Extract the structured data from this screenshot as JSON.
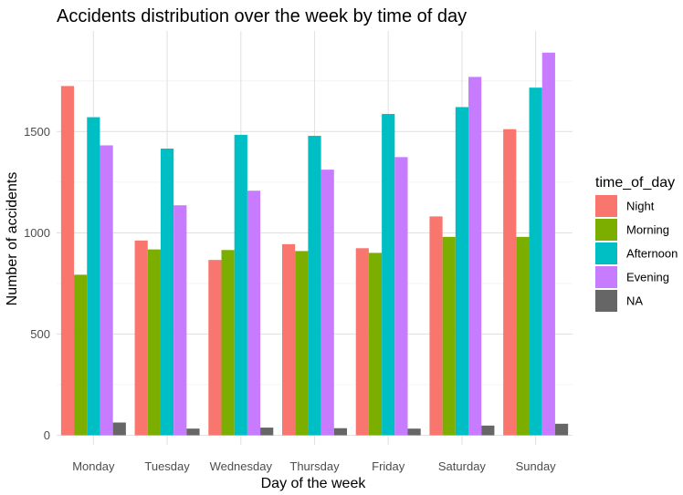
{
  "chart_data": {
    "type": "bar",
    "title": "Accidents distribution over the week by time of day",
    "xlabel": "Day of the week",
    "ylabel": "Number of accidents",
    "categories": [
      "Monday",
      "Tuesday",
      "Wednesday",
      "Thursday",
      "Friday",
      "Saturday",
      "Sunday"
    ],
    "ylim": [
      0,
      1950
    ],
    "yticks": [
      0,
      500,
      1000,
      1500
    ],
    "grid": true,
    "legend": {
      "title": "time_of_day",
      "position": "right"
    },
    "series": [
      {
        "name": "Night",
        "color": "#f8766d",
        "values": [
          1725,
          962,
          866,
          944,
          924,
          1081,
          1512
        ]
      },
      {
        "name": "Morning",
        "color": "#7cae00",
        "values": [
          793,
          918,
          915,
          910,
          901,
          980,
          980
        ]
      },
      {
        "name": "Afternoon",
        "color": "#00bfc4",
        "values": [
          1571,
          1416,
          1484,
          1479,
          1587,
          1621,
          1717
        ]
      },
      {
        "name": "Evening",
        "color": "#c77cff",
        "values": [
          1432,
          1136,
          1208,
          1312,
          1374,
          1770,
          1890
        ]
      },
      {
        "name": "NA",
        "color": "#666666",
        "values": [
          63,
          33,
          38,
          35,
          33,
          48,
          57
        ]
      }
    ]
  }
}
